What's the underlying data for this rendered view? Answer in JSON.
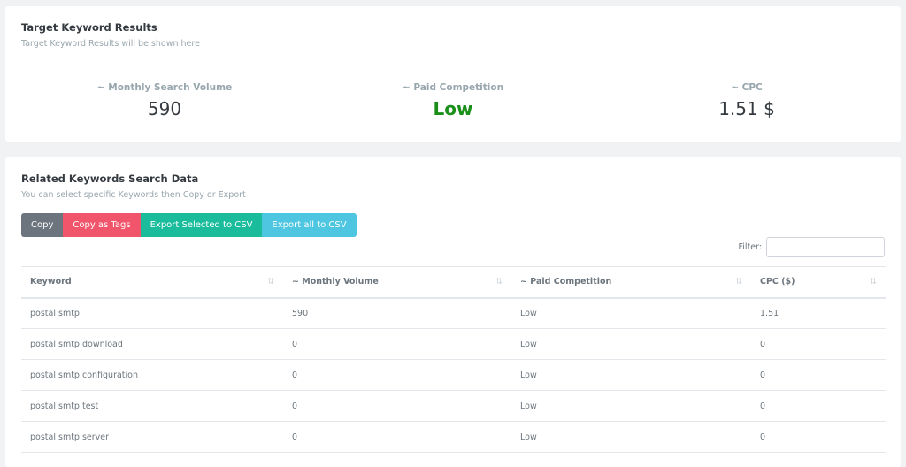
{
  "target": {
    "title": "Target Keyword Results",
    "subtitle": "Target Keyword Results will be shown here",
    "stats": [
      {
        "label": "~ Monthly Search Volume",
        "value": "590"
      },
      {
        "label": "~ Paid Competition",
        "value": "Low",
        "color": "#1a8f1a"
      },
      {
        "label": "~ CPC",
        "value": "1.51 $"
      }
    ]
  },
  "related": {
    "title": "Related Keywords Search Data",
    "subtitle": "You can select specific Keywords then Copy or Export",
    "buttons": [
      {
        "label": "Copy",
        "color": "#6c757d"
      },
      {
        "label": "Copy as Tags",
        "color": "#f1556c"
      },
      {
        "label": "Export Selected to CSV",
        "color": "#1abc9c"
      },
      {
        "label": "Export all to CSV",
        "color": "#4fc6e1"
      }
    ],
    "filter_label": "Filter:",
    "filter_value": "",
    "columns": [
      "Keyword",
      "~ Monthly Volume",
      "~ Paid Competition",
      "CPC ($)"
    ],
    "sort_icon": "⇅",
    "rows": [
      [
        "postal smtp",
        "590",
        "Low",
        "1.51"
      ],
      [
        "postal smtp download",
        "0",
        "Low",
        "0"
      ],
      [
        "postal smtp configuration",
        "0",
        "Low",
        "0"
      ],
      [
        "postal smtp test",
        "0",
        "Low",
        "0"
      ],
      [
        "postal smtp server",
        "0",
        "Low",
        "0"
      ]
    ]
  }
}
